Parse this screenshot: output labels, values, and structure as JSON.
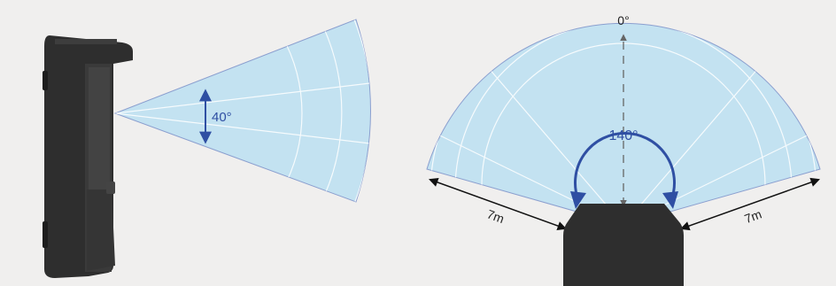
{
  "side_view": {
    "angle_label": "40°"
  },
  "top_view": {
    "center_label": "0°",
    "angle_label": "140°",
    "range_left_label": "7m",
    "range_right_label": "7m"
  },
  "colors": {
    "background": "#f0efee",
    "cone_fill": "#c3e2f1",
    "cone_edge": "#8b9fcf",
    "grid_lines": "#ffffff",
    "device_body": "#2e2e2e",
    "accent_blue": "#2f4fa3",
    "dim_arrow": "#111111",
    "axis_gray": "#666666"
  }
}
